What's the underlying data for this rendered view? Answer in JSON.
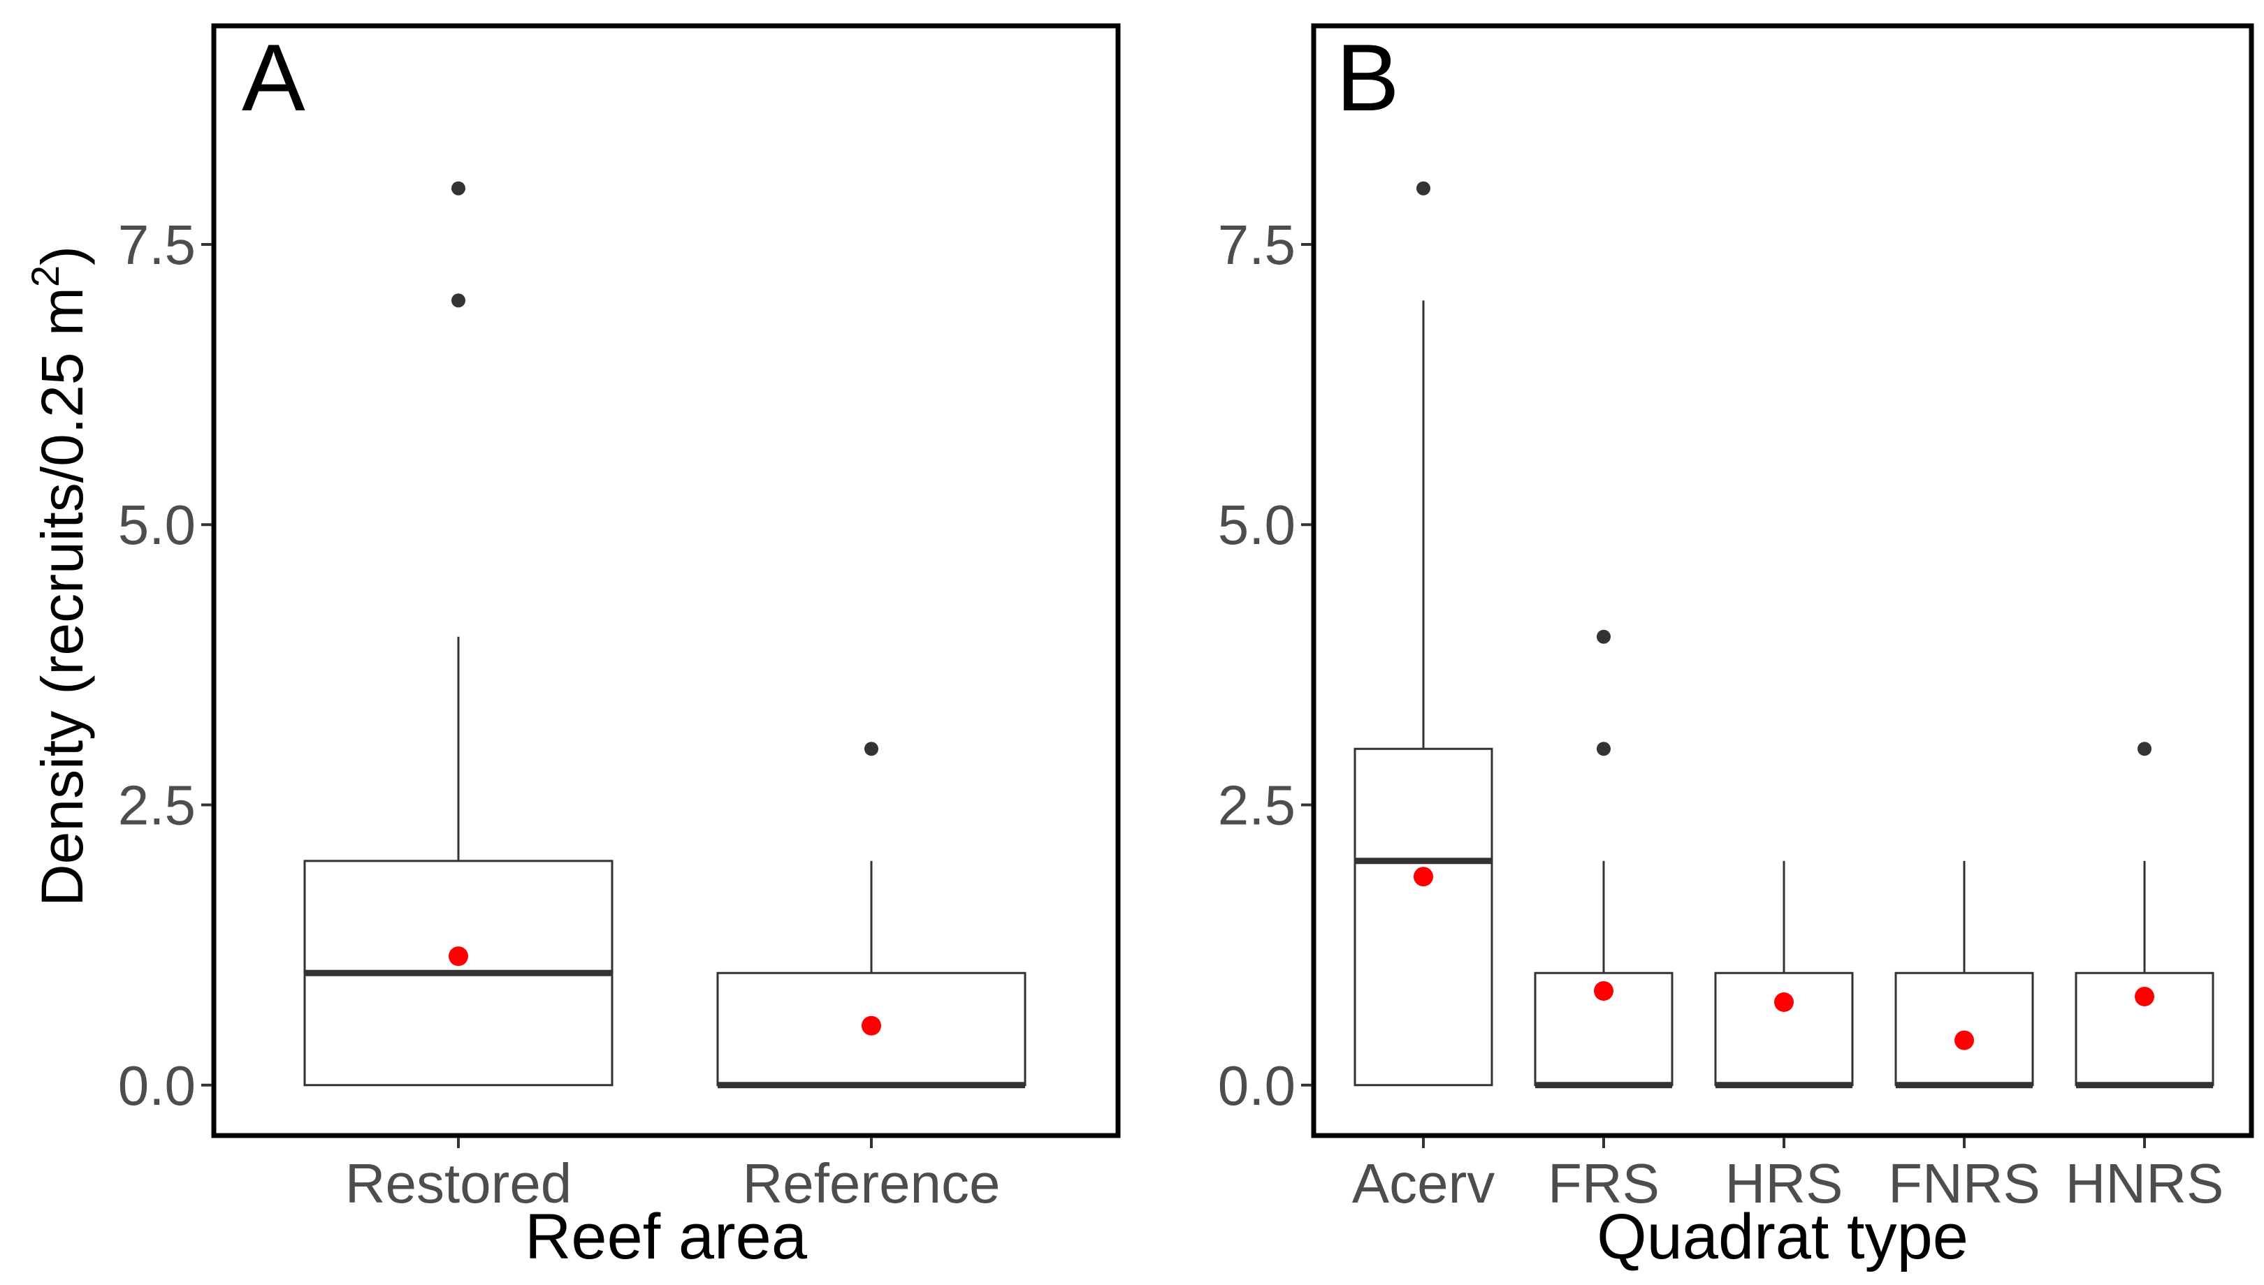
{
  "figure": {
    "y_axis_title": "Density (recruits/0.25 m²)",
    "y_title_main": "Density (recruits/0.25 m",
    "y_title_sup": "2",
    "y_title_close": ")"
  },
  "chart_data": [
    {
      "type": "box",
      "panel_label": "A",
      "title": "",
      "xlabel": "Reef area",
      "ylabel": "Density (recruits/0.25 m²)",
      "ylim": [
        -0.45,
        9.45
      ],
      "yticks": [
        0.0,
        2.5,
        5.0,
        7.5
      ],
      "ytick_labels": [
        "0.0",
        "2.5",
        "5.0",
        "7.5"
      ],
      "categories": [
        "Restored",
        "Reference"
      ],
      "boxes": [
        {
          "name": "Restored",
          "min": 0,
          "q1": 0,
          "median": 1,
          "q3": 2,
          "max": 4,
          "mean": 1.15,
          "outliers": [
            7,
            8
          ]
        },
        {
          "name": "Reference",
          "min": 0,
          "q1": 0,
          "median": 0,
          "q3": 1,
          "max": 2,
          "mean": 0.53,
          "outliers": [
            3
          ]
        }
      ],
      "mean_marker_color": "#ff0000",
      "outlier_color": "#333333",
      "grid": false
    },
    {
      "type": "box",
      "panel_label": "B",
      "title": "",
      "xlabel": "Quadrat type",
      "ylabel": "",
      "ylim": [
        -0.45,
        9.45
      ],
      "yticks": [
        0.0,
        2.5,
        5.0,
        7.5
      ],
      "ytick_labels": [
        "0.0",
        "2.5",
        "5.0",
        "7.5"
      ],
      "categories": [
        "Acerv",
        "FRS",
        "HRS",
        "FNRS",
        "HNRS"
      ],
      "boxes": [
        {
          "name": "Acerv",
          "min": 0,
          "q1": 0,
          "median": 2,
          "q3": 3,
          "max": 7,
          "mean": 1.86,
          "outliers": [
            8
          ]
        },
        {
          "name": "FRS",
          "min": 0,
          "q1": 0,
          "median": 0,
          "q3": 1,
          "max": 2,
          "mean": 0.84,
          "outliers": [
            3,
            4
          ]
        },
        {
          "name": "HRS",
          "min": 0,
          "q1": 0,
          "median": 0,
          "q3": 1,
          "max": 2,
          "mean": 0.74,
          "outliers": []
        },
        {
          "name": "FNRS",
          "min": 0,
          "q1": 0,
          "median": 0,
          "q3": 1,
          "max": 2,
          "mean": 0.4,
          "outliers": []
        },
        {
          "name": "HNRS",
          "min": 0,
          "q1": 0,
          "median": 0,
          "q3": 1,
          "max": 2,
          "mean": 0.79,
          "outliers": [
            3
          ]
        }
      ],
      "mean_marker_color": "#ff0000",
      "outlier_color": "#333333",
      "grid": false
    }
  ]
}
